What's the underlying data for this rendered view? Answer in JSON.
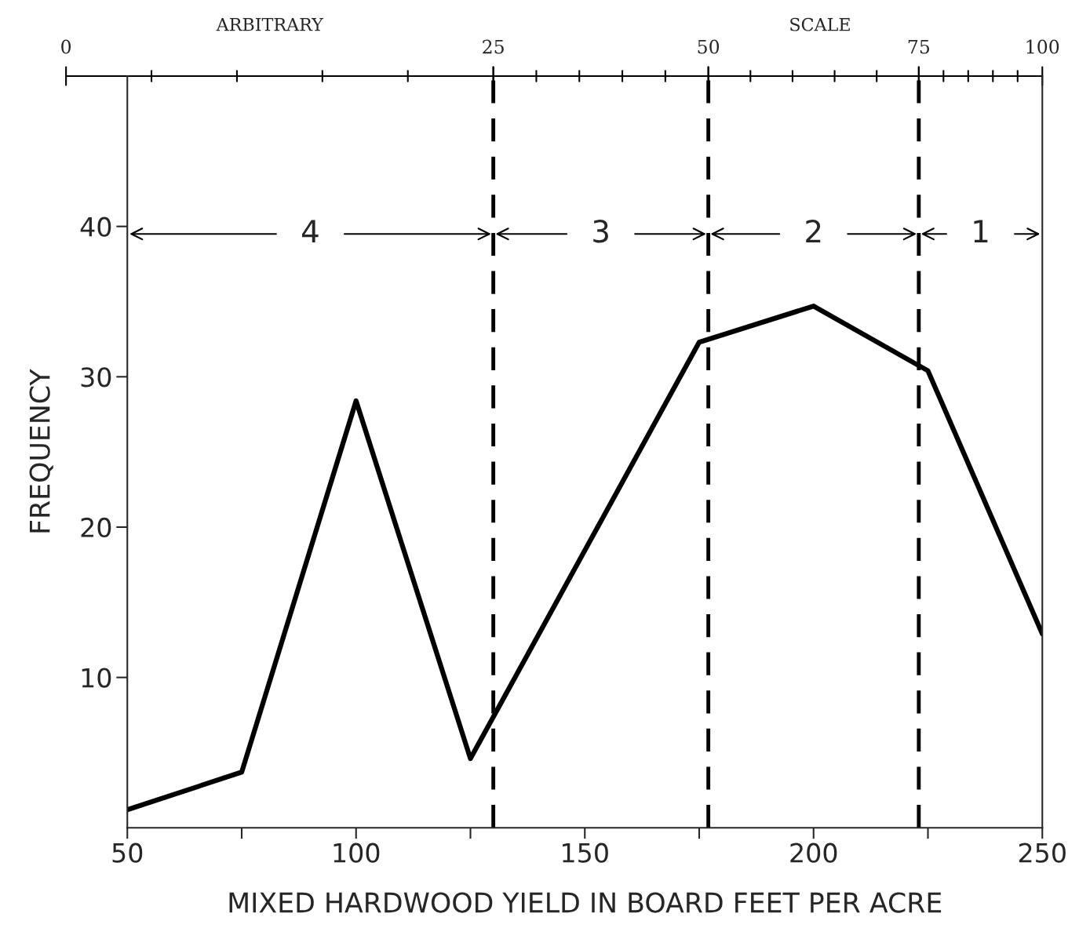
{
  "chart_data": {
    "type": "line",
    "xlabel": "MIXED HARDWOOD YIELD IN BOARD FEET PER ACRE",
    "ylabel": "FREQUENCY",
    "x": [
      50,
      75,
      100,
      125,
      175,
      200,
      225,
      250
    ],
    "series": [
      {
        "color": "#000000",
        "values": [
          1.2,
          3.7,
          28.4,
          4.6,
          32.3,
          34.7,
          30.4,
          12.9
        ]
      }
    ],
    "xlim": [
      50,
      250
    ],
    "xticks": [
      50,
      {
        "value": 75,
        "label": null
      },
      100,
      {
        "value": 125,
        "label": null
      },
      150,
      {
        "value": 175,
        "label": null
      },
      200,
      {
        "value": 225,
        "label": null
      },
      250
    ],
    "ylim": [
      0,
      50
    ],
    "yticks": [
      10,
      20,
      30,
      40
    ],
    "ref_lines": [
      {
        "axis": "x",
        "value": 130,
        "color": "#000000",
        "line_style": "dashed"
      },
      {
        "axis": "x",
        "value": 177,
        "color": "#000000",
        "line_style": "dashed"
      },
      {
        "axis": "x",
        "value": 223,
        "color": "#000000",
        "line_style": "dashed"
      }
    ],
    "annotations": [
      "ARBITRARY",
      "SCALE",
      "0",
      "25",
      "50",
      "75",
      "100",
      "4",
      "3",
      "2",
      "1"
    ],
    "marker": "none",
    "line_style": "solid",
    "grid": false,
    "legend": false
  }
}
